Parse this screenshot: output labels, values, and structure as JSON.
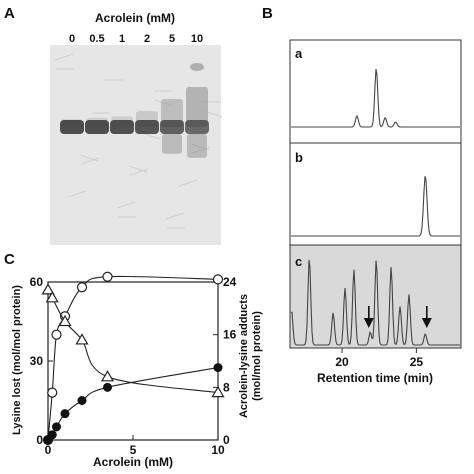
{
  "panel_a": {
    "letter": "A",
    "title": "Acrolein (mM)",
    "lanes": [
      "0",
      "0.5",
      "1",
      "2",
      "5",
      "10"
    ],
    "band_smear": [
      0.05,
      0.08,
      0.12,
      0.25,
      0.55,
      0.85
    ],
    "band_color": "#3a3a3a",
    "background": "#e6e6e6"
  },
  "panel_b": {
    "letter": "B",
    "subpanels": [
      "a",
      "b",
      "c"
    ],
    "xlabel": "Retention time (min)",
    "xticks": [
      "20",
      "25"
    ],
    "xlim": [
      16.5,
      28
    ],
    "trace_color": "#444444",
    "c_background": "#d9d9d9",
    "a_peaks": [
      [
        21.0,
        0.18
      ],
      [
        22.3,
        0.95
      ],
      [
        22.9,
        0.15
      ],
      [
        23.6,
        0.08
      ]
    ],
    "b_peaks": [
      [
        25.6,
        0.92
      ]
    ],
    "c_peaks": [
      [
        16.6,
        0.38
      ],
      [
        17.8,
        0.95
      ],
      [
        19.4,
        0.35
      ],
      [
        20.2,
        0.62
      ],
      [
        20.8,
        0.82
      ],
      [
        21.9,
        0.14
      ],
      [
        22.3,
        0.93
      ],
      [
        23.3,
        0.85
      ],
      [
        23.9,
        0.42
      ],
      [
        24.5,
        0.55
      ],
      [
        25.6,
        0.12
      ]
    ],
    "c_arrows_x": [
      21.8,
      25.7
    ]
  },
  "chart_data": {
    "type": "line",
    "panel_letter": "C",
    "xlabel": "Acrolein (mM)",
    "ylabel_left": "Lysine lost (mol/mol protein)",
    "ylabel_right": "Acrolein-lysine adducts (mol/mol protein)",
    "xlim": [
      0,
      10
    ],
    "ylim_left": [
      0,
      60
    ],
    "ylim_right": [
      0,
      24
    ],
    "xticks": [
      "0",
      "5",
      "10"
    ],
    "yticks_left": [
      "0",
      "30",
      "60"
    ],
    "yticks_right": [
      "0",
      "8",
      "16",
      "24"
    ],
    "series": [
      {
        "marker": "open-circle",
        "axis": "left",
        "x": [
          0,
          0.25,
          0.5,
          1,
          2,
          3.5,
          10
        ],
        "y": [
          0,
          18,
          40,
          47,
          58,
          62,
          61
        ]
      },
      {
        "marker": "open-triangle",
        "axis": "left",
        "x": [
          0,
          0.25,
          1,
          2,
          3.5,
          10
        ],
        "y": [
          57,
          54,
          45,
          38,
          24,
          18
        ]
      },
      {
        "marker": "filled-circle",
        "axis": "right",
        "x": [
          0,
          0.25,
          0.5,
          1,
          2,
          3.5,
          10
        ],
        "y": [
          0,
          0.8,
          2,
          4,
          6,
          8,
          11
        ]
      }
    ]
  }
}
